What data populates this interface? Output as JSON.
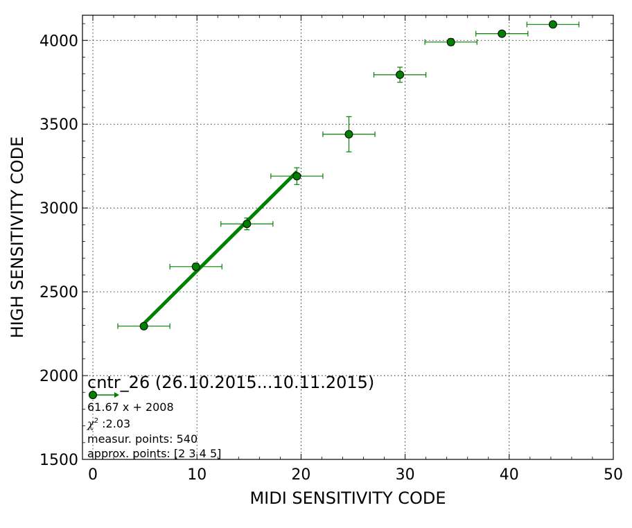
{
  "chart_data": {
    "type": "scatter",
    "xlabel": "MIDI SENSITIVITY CODE",
    "ylabel": "HIGH SENSITIVITY CODE",
    "xlim": [
      -1,
      50
    ],
    "ylim": [
      1500,
      4150
    ],
    "x_ticks": [
      0,
      10,
      20,
      30,
      40,
      50
    ],
    "y_ticks": [
      1500,
      2000,
      2500,
      3000,
      3500,
      4000
    ],
    "grid": true,
    "colors": {
      "series": "#008000",
      "marker_edge": "#000000"
    },
    "points": [
      {
        "x": 4.9,
        "y": 2295,
        "xerr": 2.5,
        "yerr": 10
      },
      {
        "x": 9.9,
        "y": 2650,
        "xerr": 2.5,
        "yerr": 20
      },
      {
        "x": 14.8,
        "y": 2905,
        "xerr": 2.5,
        "yerr": 35
      },
      {
        "x": 19.6,
        "y": 3190,
        "xerr": 2.5,
        "yerr": 50
      },
      {
        "x": 24.6,
        "y": 3440,
        "xerr": 2.5,
        "yerr": 105
      },
      {
        "x": 29.5,
        "y": 3795,
        "xerr": 2.5,
        "yerr": 45
      },
      {
        "x": 34.4,
        "y": 3990,
        "xerr": 2.5,
        "yerr": 20
      },
      {
        "x": 39.3,
        "y": 4040,
        "xerr": 2.5,
        "yerr": 10
      },
      {
        "x": 44.2,
        "y": 4095,
        "xerr": 2.5,
        "yerr": 10
      }
    ],
    "fit": {
      "x_range": [
        4.9,
        19.6
      ],
      "slope": 61.67,
      "intercept": 2008
    },
    "legend": {
      "placement": "bottom-left",
      "title": "cntr_26 (26.10.2015...10.11.2015)",
      "equation": "61.67 x + 2008",
      "chi_symbol": "χ",
      "chi_power": "2",
      "chi_value": " :2.03",
      "measur_points": "measur. points: 540",
      "approx_points": "approx. points: [2 3 4 5]"
    }
  }
}
